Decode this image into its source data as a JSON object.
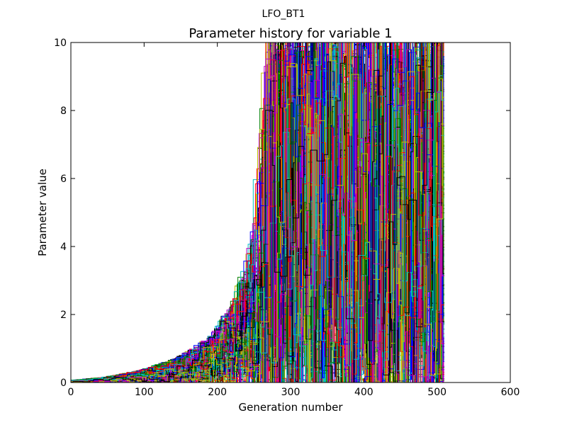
{
  "chart_data": {
    "type": "line",
    "suptitle": "LFO_BT1",
    "title": "Parameter history for variable 1",
    "xlabel": "Generation number",
    "ylabel": "Parameter value",
    "xlim": [
      0,
      600
    ],
    "ylim": [
      0,
      10
    ],
    "xticks": [
      0,
      100,
      200,
      300,
      400,
      500,
      600
    ],
    "yticks": [
      0,
      2,
      4,
      6,
      8,
      10
    ],
    "grid": false,
    "legend": "none",
    "generation_end": 510,
    "series_colors": [
      "#0000ff",
      "#008000",
      "#ff0000",
      "#00bfbf",
      "#bf00bf",
      "#bfbf00",
      "#000000"
    ],
    "series_count": 140,
    "envelope": [
      [
        0,
        0.05
      ],
      [
        50,
        0.15
      ],
      [
        100,
        0.35
      ],
      [
        150,
        0.7
      ],
      [
        200,
        1.4
      ],
      [
        230,
        2.5
      ],
      [
        250,
        4.2
      ],
      [
        260,
        7.5
      ],
      [
        270,
        10
      ],
      [
        510,
        10
      ]
    ]
  }
}
